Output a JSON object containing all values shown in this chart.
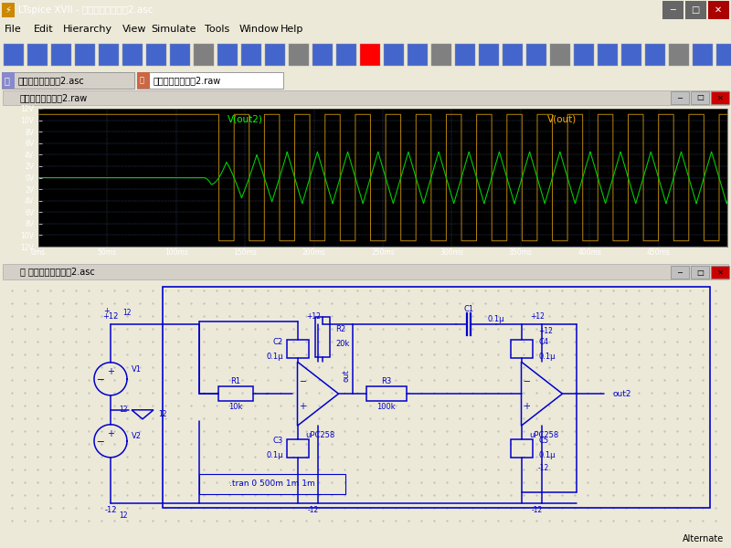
{
  "title": "LTspice XVII - 方形・三角形回路2.asc",
  "menu_items": [
    "File",
    "Edit",
    "Hierarchy",
    "View",
    "Simulate",
    "Tools",
    "Window",
    "Help"
  ],
  "tab1": "方形・三角形回路2.asc",
  "tab2": "方形・三角形回路2.raw",
  "scope_win_title": "方形・三角形回路2.raw",
  "ckt_win_title": "方形・三角形回路2.asc",
  "scope_label1": "V(out2)",
  "scope_label1_color": "#00ff00",
  "scope_label2": "V(out)",
  "scope_label2_color": "#ffaa00",
  "yticks": [
    -12,
    -10,
    -8,
    -6,
    -4,
    -2,
    0,
    2,
    4,
    6,
    8,
    10,
    12
  ],
  "xticks_ms": [
    0,
    50,
    100,
    150,
    200,
    250,
    300,
    350,
    400,
    450
  ],
  "square_high": 11.0,
  "square_low": -11.0,
  "triangle_amp": 4.5,
  "oscillation_start_ms": 120,
  "period_ms": 22,
  "window_bg": "#ece9d8",
  "titlebar_bg": "#0a246a",
  "titlebar_text": "#ffffff",
  "scope_bg": "#000000",
  "scope_plot_bg": "#000000",
  "circuit_bg": "#c8c8c8",
  "circuit_dot_bg": "#bebebe",
  "circuit_line_color": "#0000cc",
  "bottom_label": "Alternate"
}
